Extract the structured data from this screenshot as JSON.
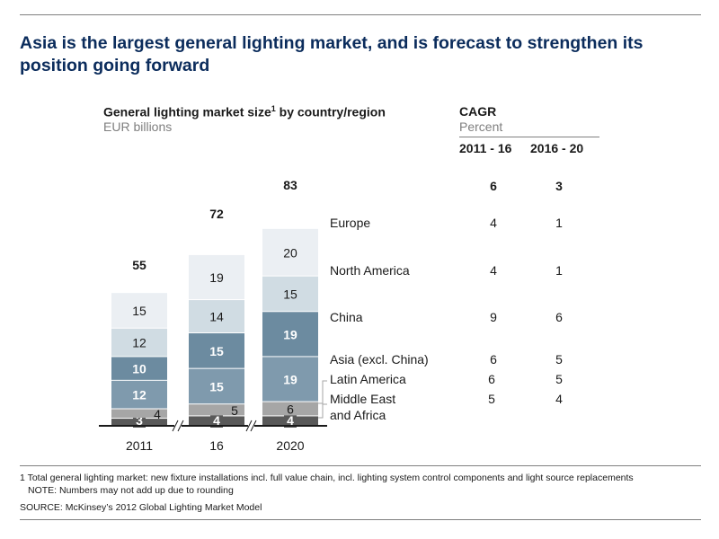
{
  "headline": "Asia is the largest general lighting market, and is forecast to strengthen its position going forward",
  "chart_title": "General lighting market size",
  "chart_title_sup": "1",
  "chart_title_tail": " by country/region",
  "unit": "EUR billions",
  "cagr": {
    "title": "CAGR",
    "unit": "Percent",
    "col1": "2011 - 16",
    "col2": "2016 - 20"
  },
  "footnote1": "1 Total general lighting market: new fixture installations incl. full value chain, incl. lighting system control components and light source replacements",
  "footnote2": "NOTE: Numbers may not add up due to rounding",
  "source": "SOURCE: McKinsey’s 2012 Global Lighting Market Model",
  "chart_data": {
    "type": "bar",
    "stacked": true,
    "categories": [
      "2011",
      "16",
      "2020"
    ],
    "totals": [
      "55",
      "72",
      "83"
    ],
    "series": [
      {
        "name": "Middle East and Africa",
        "values": [
          3,
          4,
          4
        ],
        "color": "#595959",
        "label_color": "#ffffff",
        "bold": true
      },
      {
        "name": "Latin America",
        "values": [
          4,
          5,
          6
        ],
        "color": "#a6a6a6",
        "label_color": "#1a1a1a",
        "bold": false
      },
      {
        "name": "Asia (excl. China)",
        "values": [
          12,
          15,
          19
        ],
        "color": "#7f9aad",
        "label_color": "#ffffff",
        "bold": true
      },
      {
        "name": "China",
        "values": [
          10,
          15,
          19
        ],
        "color": "#6c8ba0",
        "label_color": "#ffffff",
        "bold": true
      },
      {
        "name": "North America",
        "values": [
          12,
          14,
          15
        ],
        "color": "#d0dce3",
        "label_color": "#1a1a1a",
        "bold": false
      },
      {
        "name": "Europe",
        "values": [
          15,
          19,
          20
        ],
        "color": "#ebeff3",
        "label_color": "#1a1a1a",
        "bold": false
      }
    ],
    "legend": [
      {
        "name": "Europe",
        "cagr1": "4",
        "cagr2": "1"
      },
      {
        "name": "North America",
        "cagr1": "4",
        "cagr2": "1"
      },
      {
        "name": "China",
        "cagr1": "9",
        "cagr2": "6"
      },
      {
        "name": "Asia (excl. China)",
        "cagr1": "6",
        "cagr2": "5"
      },
      {
        "name": "Latin America",
        "cagr1": "6",
        "cagr2": "5"
      },
      {
        "name": "Middle East",
        "name2": "and Africa",
        "cagr1": "5",
        "cagr2": "4"
      }
    ],
    "total_cagr": [
      "6",
      "3"
    ]
  }
}
